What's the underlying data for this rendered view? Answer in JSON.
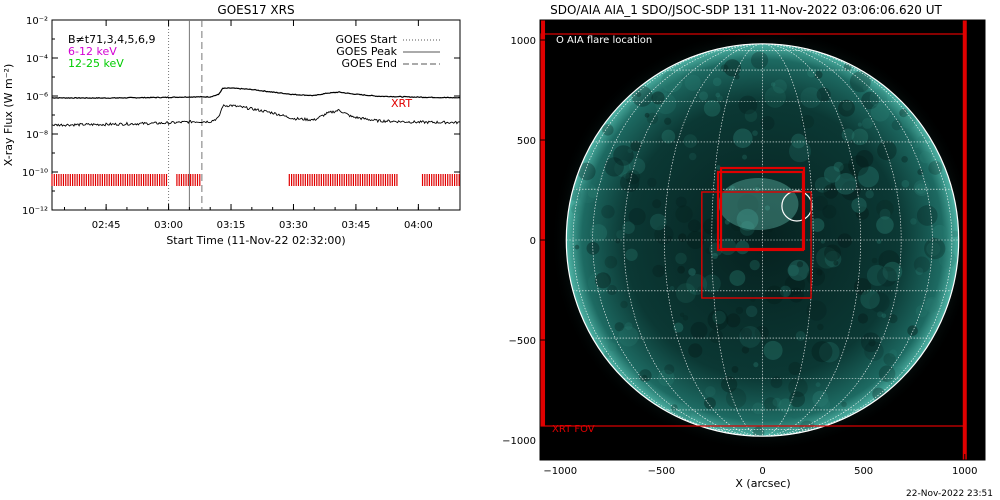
{
  "left_panel": {
    "title": "GOES17 XRS",
    "xlabel": "Start Time (11-Nov-22 02:32:00)",
    "ylabel": "X-ray Flux (W m⁻²)",
    "legend_lines": [
      {
        "text": "GOES Start",
        "style": "dotted"
      },
      {
        "text": "GOES Peak",
        "style": "solid"
      },
      {
        "text": "GOES End",
        "style": "dashed"
      }
    ],
    "channel_labels": [
      {
        "text": "B≠t71,3,4,5,6,9",
        "color": "#000000"
      },
      {
        "text": "6-12 keV",
        "color": "#d400d4"
      },
      {
        "text": "12-25 keV",
        "color": "#00cc00"
      }
    ],
    "xrt_label": "XRT"
  },
  "right_panel": {
    "title": "SDO/AIA AIA_1 SDO/JSOC-SDP 131 11-Nov-2022 03:06:06.620 UT",
    "legend": "O AIA flare location",
    "fov_label": "XRT FOV",
    "xlabel": "X (arcsec)",
    "footer": "22-Nov-2022 23:51"
  },
  "chart_data": [
    {
      "type": "line",
      "title": "GOES17 XRS",
      "xlabel": "Start Time (11-Nov-22 02:32:00)",
      "ylabel": "X-ray Flux (W m⁻²)",
      "y_scale": "log",
      "ylim": [
        1e-12,
        0.01
      ],
      "y_ticks": [
        {
          "value": 0.01,
          "label": "10⁻²"
        },
        {
          "value": 0.0001,
          "label": "10⁻⁴"
        },
        {
          "value": 1e-06,
          "label": "10⁻⁶"
        },
        {
          "value": 1e-08,
          "label": "10⁻⁸"
        },
        {
          "value": 1e-10,
          "label": "10⁻¹⁰"
        },
        {
          "value": 1e-12,
          "label": "10⁻¹²"
        }
      ],
      "xlim": [
        "02:32",
        "04:10"
      ],
      "x_ticks": [
        "02:45",
        "03:00",
        "03:15",
        "03:30",
        "03:45",
        "04:00"
      ],
      "series": [
        {
          "name": "",
          "color": "#000000",
          "x": [
            "02:32",
            "02:45",
            "03:00",
            "03:06",
            "03:10",
            "03:12",
            "03:13",
            "03:15",
            "03:20",
            "03:25",
            "03:30",
            "03:35",
            "03:38",
            "03:41",
            "03:44",
            "03:50",
            "04:00",
            "04:10"
          ],
          "y": [
            8e-07,
            7.8e-07,
            8.5e-07,
            9e-07,
            9e-07,
            1.2e-06,
            2.5e-06,
            2.6e-06,
            2.2e-06,
            1.6e-06,
            1.2e-06,
            1.05e-06,
            1.4e-06,
            1.6e-06,
            1.3e-06,
            9.8e-07,
            8.7e-07,
            8e-07
          ]
        },
        {
          "name": "",
          "color": "#000000",
          "x": [
            "02:32",
            "02:45",
            "03:00",
            "03:06",
            "03:10",
            "03:12",
            "03:13",
            "03:15",
            "03:20",
            "03:25",
            "03:30",
            "03:35",
            "03:38",
            "03:41",
            "03:44",
            "03:50",
            "04:00",
            "04:10"
          ],
          "y": [
            3e-08,
            3.2e-08,
            3.8e-08,
            4.5e-08,
            4.5e-08,
            7e-08,
            3e-07,
            3.2e-07,
            2.1e-07,
            1.3e-07,
            6.5e-08,
            5.5e-08,
            1.2e-07,
            1.8e-07,
            8e-08,
            5e-08,
            4.2e-08,
            4e-08
          ]
        }
      ],
      "vlines": [
        {
          "name": "GOES Start",
          "x": "03:00",
          "style": "dotted"
        },
        {
          "name": "GOES Peak",
          "x": "03:05",
          "style": "solid"
        },
        {
          "name": "GOES End",
          "x": "03:08",
          "style": "dashed"
        }
      ],
      "xrt_coverage": [
        {
          "start": "02:32",
          "end": "03:00"
        },
        {
          "start": "03:02",
          "end": "03:08"
        },
        {
          "start": "03:29",
          "end": "03:55"
        },
        {
          "start": "04:01",
          "end": "04:10"
        }
      ],
      "grid": false
    },
    {
      "type": "image",
      "title": "SDO/AIA AIA_1 SDO/JSOC-SDP 131 11-Nov-2022 03:06:06.620 UT",
      "xlabel": "X (arcsec)",
      "xlim": [
        -1100,
        1100
      ],
      "ylim": [
        -1100,
        1100
      ],
      "x_ticks": [
        -1000,
        -500,
        0,
        500,
        1000
      ],
      "y_ticks": [
        -1000,
        -500,
        0,
        500,
        1000
      ],
      "solar_radius_arcsec": 970,
      "flare_location": {
        "x": 170,
        "y": 170
      },
      "fov_boxes": [
        {
          "x0": -300,
          "x1": 240,
          "y0": 240,
          "y1": -290
        },
        {
          "x0": -220,
          "x1": 200,
          "y0": 340,
          "y1": -50
        },
        {
          "x0": -205,
          "x1": 205,
          "y0": 360,
          "y1": -45
        },
        {
          "x0": -1095,
          "x1": 1000,
          "y0": 1030,
          "y1": -930
        }
      ],
      "grid": true
    }
  ]
}
